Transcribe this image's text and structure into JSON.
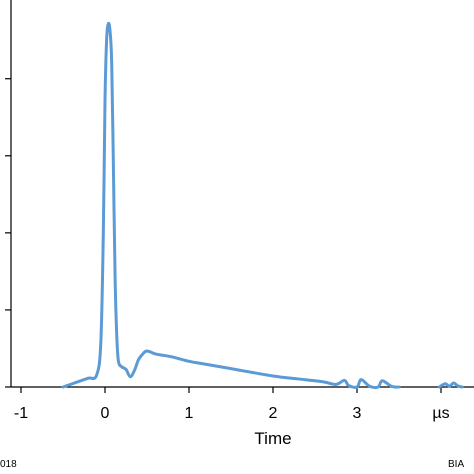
{
  "chart_data": {
    "type": "line",
    "title": "",
    "xlabel": "Time",
    "ylabel": "",
    "x_unit_label": "µs",
    "xlim": [
      -1,
      4.3
    ],
    "ylim": [
      0,
      1
    ],
    "x_ticks": [
      -1,
      0,
      1,
      2,
      3
    ],
    "x_tick_labels": [
      "-1",
      "0",
      "1",
      "2",
      "3"
    ],
    "y_ticks": [
      0,
      0.21,
      0.42,
      0.63,
      0.84
    ],
    "grid": false,
    "series": [
      {
        "color": "#5b9bd5",
        "x": [
          -0.5,
          -0.35,
          -0.2,
          -0.1,
          -0.05,
          -0.02,
          0.0,
          0.02,
          0.04,
          0.06,
          0.08,
          0.1,
          0.12,
          0.14,
          0.16,
          0.2,
          0.25,
          0.3,
          0.35,
          0.4,
          0.45,
          0.5,
          0.6,
          0.7,
          0.8,
          1.0,
          1.2,
          1.5,
          2.0,
          2.3,
          2.6,
          2.75,
          2.85,
          2.9,
          3.0,
          3.05,
          3.15,
          3.25,
          3.3,
          3.4,
          3.45,
          3.5
        ],
        "y": [
          0.0,
          0.012,
          0.024,
          0.032,
          0.12,
          0.42,
          0.78,
          0.95,
          0.99,
          0.97,
          0.88,
          0.6,
          0.3,
          0.14,
          0.07,
          0.055,
          0.048,
          0.028,
          0.045,
          0.075,
          0.09,
          0.098,
          0.09,
          0.086,
          0.082,
          0.07,
          0.062,
          0.05,
          0.03,
          0.022,
          0.014,
          0.007,
          0.018,
          0.004,
          0.0,
          0.02,
          0.002,
          0.0,
          0.017,
          0.003,
          0.0,
          0.0
        ]
      }
    ],
    "tail_series": {
      "x": [
        3.98,
        4.05,
        4.1,
        4.15,
        4.2,
        4.25
      ],
      "y": [
        0.0,
        0.009,
        0.002,
        0.011,
        0.003,
        0.0
      ]
    }
  },
  "footer": {
    "left_text": "018",
    "right_text": "BIA"
  }
}
